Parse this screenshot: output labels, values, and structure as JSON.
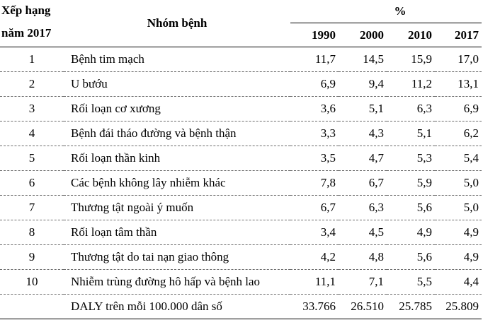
{
  "header": {
    "rank_line1": "Xếp hạng",
    "rank_line2": "năm 2017",
    "group": "Nhóm bệnh",
    "percent": "%",
    "years": [
      "1990",
      "2000",
      "2010",
      "2017"
    ]
  },
  "rows": [
    {
      "rank": "1",
      "group": "Bệnh tim mạch",
      "v": [
        "11,7",
        "14,5",
        "15,9",
        "17,0"
      ]
    },
    {
      "rank": "2",
      "group": "U bướu",
      "v": [
        "6,9",
        "9,4",
        "11,2",
        "13,1"
      ]
    },
    {
      "rank": "3",
      "group": "Rối loạn cơ xương",
      "v": [
        "3,6",
        "5,1",
        "6,3",
        "6,9"
      ]
    },
    {
      "rank": "4",
      "group": "Bệnh đái tháo đường và bệnh thận",
      "v": [
        "3,3",
        "4,3",
        "5,1",
        "6,2"
      ]
    },
    {
      "rank": "5",
      "group": "Rối loạn thần kinh",
      "v": [
        "3,5",
        "4,7",
        "5,3",
        "5,4"
      ]
    },
    {
      "rank": "6",
      "group": "Các bệnh không lây nhiễm khác",
      "v": [
        "7,8",
        "6,7",
        "5,9",
        "5,0"
      ]
    },
    {
      "rank": "7",
      "group": "Thương tật ngoài ý muốn",
      "v": [
        "6,7",
        "6,3",
        "5,6",
        "5,0"
      ]
    },
    {
      "rank": "8",
      "group": "Rối loạn tâm thần",
      "v": [
        "3,4",
        "4,5",
        "4,9",
        "4,9"
      ]
    },
    {
      "rank": "9",
      "group": "Thương tật do tai nạn giao thông",
      "v": [
        "4,2",
        "4,8",
        "5,6",
        "4,9"
      ]
    },
    {
      "rank": "10",
      "group": "Nhiễm trùng đường hô hấp và bệnh lao",
      "v": [
        "11,1",
        "7,1",
        "5,5",
        "4,4"
      ]
    }
  ],
  "total": {
    "label": "DALY trên mỗi 100.000 dân số",
    "v": [
      "33.766",
      "26.510",
      "25.785",
      "25.809"
    ]
  }
}
